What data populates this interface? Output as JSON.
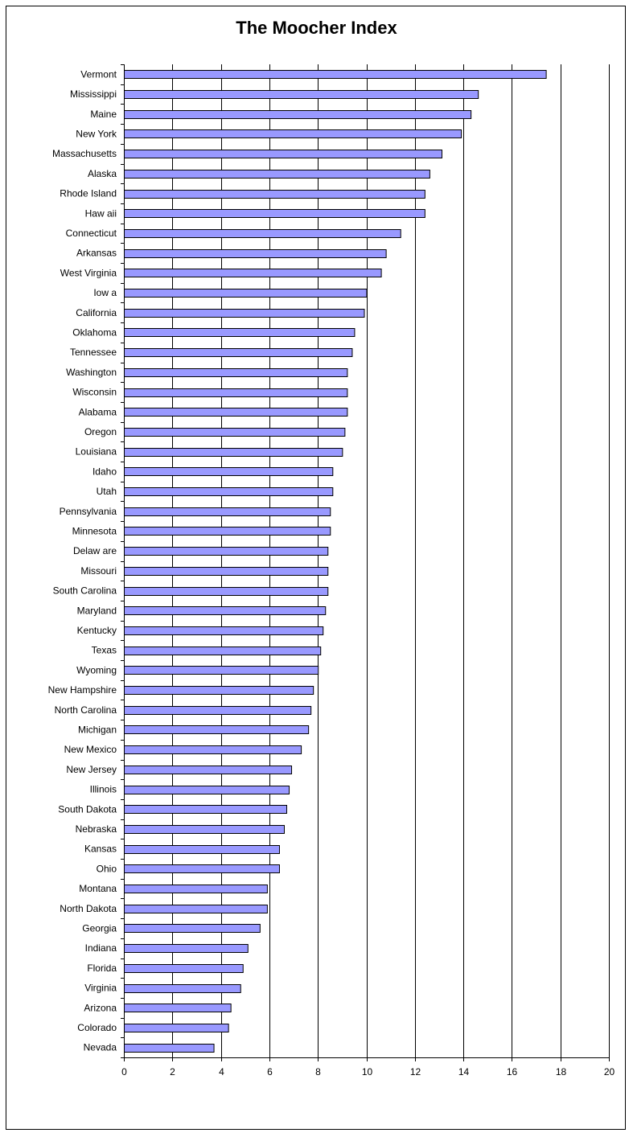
{
  "chart_data": {
    "type": "bar",
    "orientation": "horizontal",
    "title": "The Moocher Index",
    "xlabel": "",
    "ylabel": "",
    "xlim": [
      0,
      20
    ],
    "xticks": [
      0,
      2,
      4,
      6,
      8,
      10,
      12,
      14,
      16,
      18,
      20
    ],
    "grid": "vertical",
    "legend": "none",
    "bar_color": "#9999FF",
    "categories": [
      "Vermont",
      "Mississippi",
      "Maine",
      "New York",
      "Massachusetts",
      "Alaska",
      "Rhode Island",
      "Haw aii",
      "Connecticut",
      "Arkansas",
      "West Virginia",
      "Iow a",
      "California",
      "Oklahoma",
      "Tennessee",
      "Washington",
      "Wisconsin",
      "Alabama",
      "Oregon",
      "Louisiana",
      "Idaho",
      "Utah",
      "Pennsylvania",
      "Minnesota",
      "Delaw are",
      "Missouri",
      "South Carolina",
      "Maryland",
      "Kentucky",
      "Texas",
      "Wyoming",
      "New Hampshire",
      "North Carolina",
      "Michigan",
      "New Mexico",
      "New Jersey",
      "Illinois",
      "South Dakota",
      "Nebraska",
      "Kansas",
      "Ohio",
      "Montana",
      "North Dakota",
      "Georgia",
      "Indiana",
      "Florida",
      "Virginia",
      "Arizona",
      "Colorado",
      "Nevada"
    ],
    "values": [
      17.4,
      14.6,
      14.3,
      13.9,
      13.1,
      12.6,
      12.4,
      12.4,
      11.4,
      10.8,
      10.6,
      10.0,
      9.9,
      9.5,
      9.4,
      9.2,
      9.2,
      9.2,
      9.1,
      9.0,
      8.6,
      8.6,
      8.5,
      8.5,
      8.4,
      8.4,
      8.4,
      8.3,
      8.2,
      8.1,
      8.0,
      7.8,
      7.7,
      7.6,
      7.3,
      6.9,
      6.8,
      6.7,
      6.6,
      6.4,
      6.4,
      5.9,
      5.9,
      5.6,
      5.1,
      4.9,
      4.8,
      4.4,
      4.3,
      3.7
    ]
  }
}
